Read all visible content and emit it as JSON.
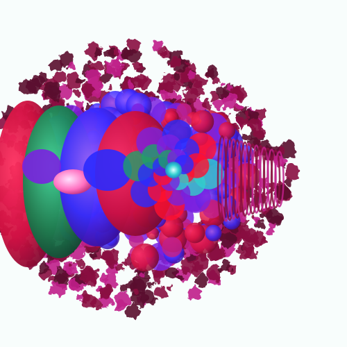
{
  "image": {
    "subject": "fractal-render",
    "colors": {
      "background": "#f8fdfc",
      "fringe": "#8a1040",
      "fringe_dark": "#5a0a2e",
      "magenta": "#c0208a",
      "purple": "#7a22e0",
      "blue": "#2a2aff",
      "red": "#ff1030",
      "green": "#1fa06a",
      "cyan": "#30d0d0",
      "pink": "#ff70c0"
    }
  }
}
